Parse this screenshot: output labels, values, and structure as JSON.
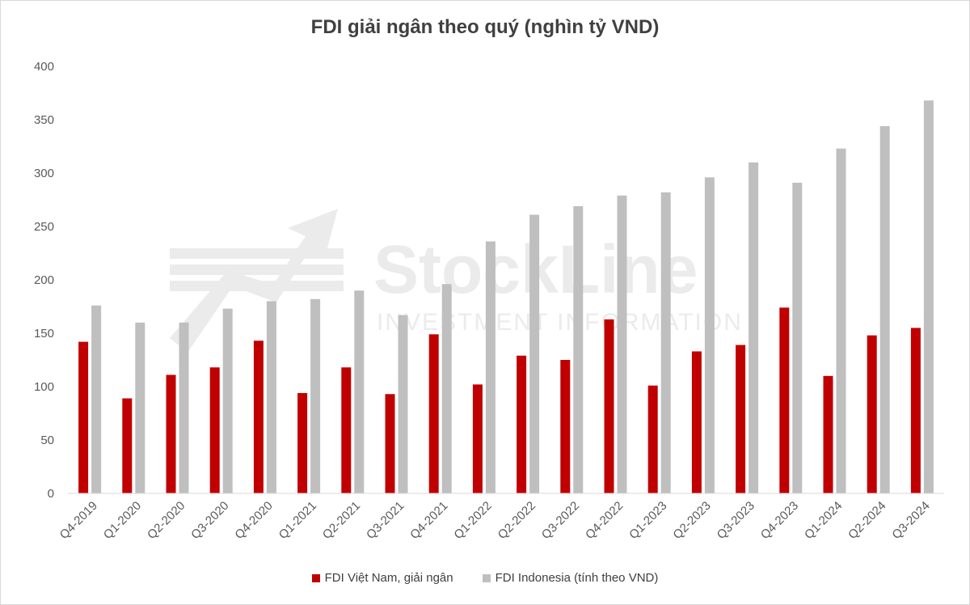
{
  "chart_data": {
    "type": "bar",
    "title": "FDI giải ngân theo quý (nghìn tỷ VND)",
    "categories": [
      "Q4-2019",
      "Q1-2020",
      "Q2-2020",
      "Q3-2020",
      "Q4-2020",
      "Q1-2021",
      "Q2-2021",
      "Q3-2021",
      "Q4-2021",
      "Q1-2022",
      "Q2-2022",
      "Q3-2022",
      "Q4-2022",
      "Q1-2023",
      "Q2-2023",
      "Q3-2023",
      "Q4-2023",
      "Q1-2024",
      "Q2-2024",
      "Q3-2024"
    ],
    "series": [
      {
        "name": "FDI Việt Nam, giải ngân",
        "color": "#c00000",
        "values": [
          142,
          89,
          111,
          118,
          143,
          94,
          118,
          93,
          149,
          102,
          129,
          125,
          163,
          101,
          133,
          139,
          174,
          110,
          148,
          155
        ]
      },
      {
        "name": "FDI Indonesia (tính theo VND)",
        "color": "#bfbfbf",
        "values": [
          176,
          160,
          160,
          173,
          180,
          182,
          190,
          167,
          196,
          236,
          261,
          269,
          279,
          282,
          296,
          310,
          291,
          323,
          344,
          368
        ]
      }
    ],
    "ylim": [
      0,
      400
    ],
    "yticks": [
      0,
      50,
      100,
      150,
      200,
      250,
      300,
      350,
      400
    ],
    "grid": false,
    "legend_position": "bottom"
  },
  "watermark": {
    "brand": "StockLine",
    "tagline": "INVESTMENT INFORMATION",
    "color": "#e8e8e8"
  }
}
